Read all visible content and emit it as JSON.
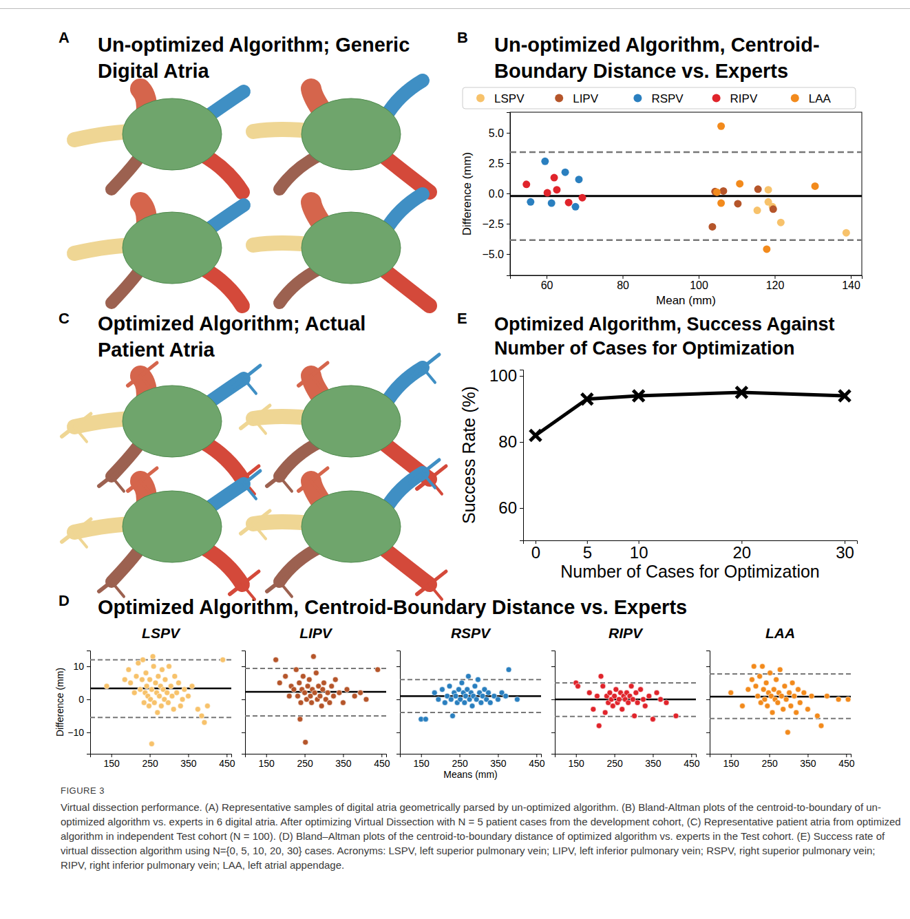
{
  "panels": [
    {
      "letter": "A",
      "title": "Un-optimized Algorithm; Generic Digital Atria"
    },
    {
      "letter": "B",
      "title": "Un-optimized Algorithm, Centroid-Boundary Distance vs. Experts"
    },
    {
      "letter": "C",
      "title": "Optimized Algorithm; Actual Patient Atria"
    },
    {
      "letter": "D",
      "title": "Optimized Algorithm, Centroid-Boundary Distance vs. Experts"
    },
    {
      "letter": "E",
      "title": "Optimized Algorithm, Success Against Number of Cases for Optimization"
    }
  ],
  "caption": {
    "label": "FIGURE 3",
    "text": "Virtual dissection performance. (A) Representative samples of digital atria geometrically parsed by un-optimized algorithm. (B) Bland-Altman plots of the centroid-to-boundary of un-optimized algorithm vs. experts in 6 digital atria. After optimizing Virtual Dissection with N = 5 patient cases from the development cohort, (C) Representative patient atria from optimized algorithm in independent Test cohort (N = 100). (D) Bland–Altman plots of the centroid-to-boundary distance of optimized algorithm vs. experts in the Test cohort. (E) Success rate of virtual dissection algorithm using N={0, 5, 10, 20, 30} cases. Acronyms: LSPV, left superior pulmonary vein; LIPV, left inferior pulmonary vein; RSPV, right superior pulmonary vein; RIPV, right inferior pulmonary vein; LAA, left atrial appendage."
  },
  "chart_data": [
    {
      "type": "scatter",
      "xlabel": "Mean (mm)",
      "ylabel": "Difference (mm)",
      "legend": "top",
      "xlim": [
        50.4,
        142.9
      ],
      "ylim": [
        -6.76,
        6.7
      ],
      "xticks": [
        60,
        80,
        100,
        120,
        140
      ],
      "yticks": [
        {
          "value": -5,
          "label": "−5.0"
        },
        {
          "value": -2.5,
          "label": "−2.5"
        },
        {
          "value": 0,
          "label": "0.0"
        },
        2.5,
        {
          "value": 5,
          "label": "5.0"
        }
      ],
      "mean_difference": -0.22,
      "limits_of_agreement": [
        -3.85,
        3.4
      ],
      "series": [
        {
          "name": "LSPV",
          "color": "#f7c26b",
          "x": [
            115.4,
            118.3,
            118.3,
            119.4,
            121.6,
            138.8
          ],
          "values": [
            -1.4,
            0.3,
            -0.7,
            -1.1,
            -2.4,
            -3.25
          ]
        },
        {
          "name": "LIPV",
          "color": "#b5552a",
          "x": [
            103.6,
            104.3,
            106.5,
            110.3,
            115.6,
            119.6
          ],
          "values": [
            -2.75,
            0.15,
            0.2,
            -0.85,
            0.35,
            -1.3
          ]
        },
        {
          "name": "RSPV",
          "color": "#2a7fbf",
          "x": [
            55.8,
            59.6,
            61.3,
            64.9,
            67.6,
            68.5
          ],
          "values": [
            -0.7,
            2.65,
            -0.8,
            1.75,
            -1.1,
            1.15
          ]
        },
        {
          "name": "RIPV",
          "color": "#e0242b",
          "x": [
            54.7,
            60.2,
            62.0,
            62.7,
            65.8,
            69.4
          ],
          "values": [
            0.75,
            0.05,
            1.3,
            0.3,
            -0.75,
            -0.35
          ]
        },
        {
          "name": "LAA",
          "color": "#f28a1c",
          "x": [
            105.9,
            105.9,
            104.8,
            110.8,
            117.9,
            130.6
          ],
          "values": [
            5.55,
            -0.8,
            0.1,
            0.8,
            -4.6,
            0.6
          ]
        }
      ]
    },
    {
      "type": "line",
      "xlabel": "Number of Cases for Optimization",
      "ylabel": "Success Rate (%)",
      "x": [
        0,
        5,
        10,
        20,
        30
      ],
      "values": [
        82,
        93,
        94,
        95,
        94
      ],
      "color": "#000000",
      "marker": "x",
      "xlim": [
        -1.2,
        31.2
      ],
      "ylim": [
        50.2,
        101.9
      ],
      "xticks": [
        0,
        5,
        10,
        20,
        30
      ],
      "yticks": [
        60,
        80,
        100
      ]
    },
    {
      "type": "scatter",
      "title": "LSPV",
      "color": "#f7c26b",
      "ylabel": "Difference (mm)",
      "xlim": [
        95,
        462
      ],
      "ylim": [
        -16.5,
        14.8
      ],
      "xticks": [
        150,
        250,
        350,
        450
      ],
      "yticks": [
        {
          "value": -10,
          "label": "−10"
        },
        0,
        10
      ],
      "mean_difference": 3.3,
      "limits_of_agreement": [
        -5.5,
        12.0
      ],
      "x": [
        138,
        185,
        195,
        200,
        210,
        215,
        220,
        225,
        230,
        232,
        235,
        238,
        240,
        242,
        245,
        248,
        250,
        252,
        255,
        258,
        260,
        262,
        265,
        268,
        270,
        272,
        275,
        278,
        280,
        282,
        285,
        288,
        290,
        295,
        298,
        300,
        305,
        308,
        312,
        315,
        320,
        325,
        330,
        335,
        340,
        350,
        360,
        375,
        385,
        392,
        400,
        440,
        255
      ],
      "values": [
        4,
        6,
        9,
        5,
        2,
        7,
        11,
        3,
        6,
        12,
        -1,
        2,
        8,
        4,
        1,
        -2,
        6,
        0,
        3,
        13,
        10,
        -1,
        5,
        2,
        -4,
        7,
        1,
        4,
        -2,
        9,
        3,
        0,
        6,
        2,
        -1,
        10,
        4,
        1,
        -3,
        7,
        2,
        5,
        -2,
        0,
        3,
        1,
        4,
        -3,
        -5,
        -7,
        -2,
        12,
        -13.5
      ]
    },
    {
      "type": "scatter",
      "title": "LIPV",
      "color": "#b5552a",
      "tick_labels": "x",
      "xlim": [
        95,
        462
      ],
      "ylim": [
        -16.5,
        14.8
      ],
      "xticks": [
        150,
        250,
        350,
        450
      ],
      "yticks": [
        {
          "value": -10,
          "label": "−10"
        },
        0,
        10
      ],
      "mean_difference": 2.3,
      "limits_of_agreement": [
        -5.0,
        9.4
      ],
      "x": [
        175,
        185,
        200,
        210,
        215,
        222,
        228,
        232,
        236,
        240,
        243,
        246,
        250,
        252,
        255,
        258,
        262,
        265,
        268,
        270,
        273,
        276,
        280,
        283,
        286,
        290,
        294,
        297,
        300,
        305,
        310,
        315,
        320,
        325,
        330,
        340,
        350,
        360,
        380,
        395,
        410,
        440,
        238
      ],
      "values": [
        12,
        5,
        7,
        1,
        4,
        3,
        9,
        1,
        5,
        -1,
        3,
        7,
        2,
        -13,
        0,
        4,
        6,
        1,
        -1,
        3,
        13,
        2,
        8,
        0,
        4,
        1,
        -2,
        3,
        5,
        0,
        2,
        -1,
        4,
        1,
        6,
        2,
        -1,
        3,
        1,
        2,
        0,
        9,
        -6
      ]
    },
    {
      "type": "scatter",
      "title": "RSPV",
      "color": "#2a7fbf",
      "tick_labels": "x",
      "xlabel": "Means (mm)",
      "xlim": [
        95,
        462
      ],
      "ylim": [
        -16.5,
        14.8
      ],
      "xticks": [
        150,
        250,
        350,
        450
      ],
      "yticks": [
        {
          "value": -10,
          "label": "−10"
        },
        0,
        10
      ],
      "mean_difference": 1.0,
      "limits_of_agreement": [
        -4.0,
        6.0
      ],
      "x": [
        150,
        162,
        185,
        195,
        205,
        212,
        218,
        224,
        228,
        232,
        236,
        240,
        244,
        248,
        252,
        256,
        260,
        263,
        266,
        270,
        273,
        276,
        280,
        283,
        286,
        290,
        294,
        298,
        302,
        306,
        310,
        315,
        320,
        325,
        330,
        340,
        350,
        360,
        370,
        378,
        400
      ],
      "values": [
        -6,
        -6,
        2,
        0,
        3,
        -1,
        1,
        4,
        0,
        -5,
        2,
        1,
        -1,
        3,
        0,
        5,
        2,
        -1,
        1,
        3,
        7,
        0,
        2,
        -2,
        1,
        4,
        0,
        6,
        2,
        -1,
        1,
        3,
        0,
        2,
        -1,
        1,
        0,
        2,
        1,
        9,
        0
      ]
    },
    {
      "type": "scatter",
      "title": "RIPV",
      "color": "#e0242b",
      "tick_labels": "x",
      "xlim": [
        95,
        462
      ],
      "ylim": [
        -16.5,
        14.8
      ],
      "xticks": [
        150,
        250,
        350,
        450
      ],
      "yticks": [
        {
          "value": -10,
          "label": "−10"
        },
        0,
        10
      ],
      "mean_difference": 0.0,
      "limits_of_agreement": [
        -5.2,
        5.0
      ],
      "x": [
        150,
        155,
        185,
        195,
        205,
        210,
        215,
        220,
        226,
        230,
        234,
        238,
        242,
        246,
        250,
        254,
        258,
        262,
        266,
        270,
        274,
        278,
        282,
        286,
        290,
        294,
        298,
        302,
        306,
        310,
        318,
        325,
        330,
        340,
        350,
        360,
        370,
        385,
        410
      ],
      "values": [
        5,
        4,
        2,
        -3,
        1,
        -8,
        7,
        4,
        -4,
        1,
        -1,
        2,
        0,
        -2,
        1,
        3,
        -1,
        0,
        2,
        -3,
        1,
        0,
        2,
        -1,
        1,
        4,
        0,
        -5,
        2,
        -1,
        3,
        0,
        -2,
        1,
        -6,
        2,
        0,
        -1,
        -5
      ]
    },
    {
      "type": "scatter",
      "title": "LAA",
      "color": "#f28a1c",
      "tick_labels": "x",
      "xlim": [
        95,
        462
      ],
      "ylim": [
        -16.5,
        14.8
      ],
      "xticks": [
        150,
        250,
        350,
        450
      ],
      "yticks": [
        {
          "value": -10,
          "label": "−10"
        },
        0,
        10
      ],
      "mean_difference": 0.8,
      "limits_of_agreement": [
        -5.8,
        7.7
      ],
      "x": [
        150,
        180,
        195,
        205,
        210,
        215,
        220,
        225,
        228,
        232,
        235,
        238,
        242,
        245,
        248,
        252,
        255,
        258,
        262,
        265,
        268,
        272,
        275,
        278,
        282,
        286,
        290,
        294,
        298,
        302,
        306,
        310,
        315,
        320,
        325,
        330,
        340,
        350,
        360,
        375,
        385,
        400,
        430,
        455
      ],
      "values": [
        2,
        -2,
        3,
        6,
        10,
        4,
        1,
        7,
        -1,
        10,
        3,
        0,
        5,
        -2,
        2,
        8,
        1,
        -4,
        3,
        0,
        6,
        -1,
        2,
        9,
        1,
        -3,
        4,
        0,
        -10,
        2,
        -2,
        5,
        1,
        -4,
        3,
        -1,
        2,
        -3,
        1,
        -5,
        -8,
        1,
        0,
        0
      ]
    }
  ]
}
